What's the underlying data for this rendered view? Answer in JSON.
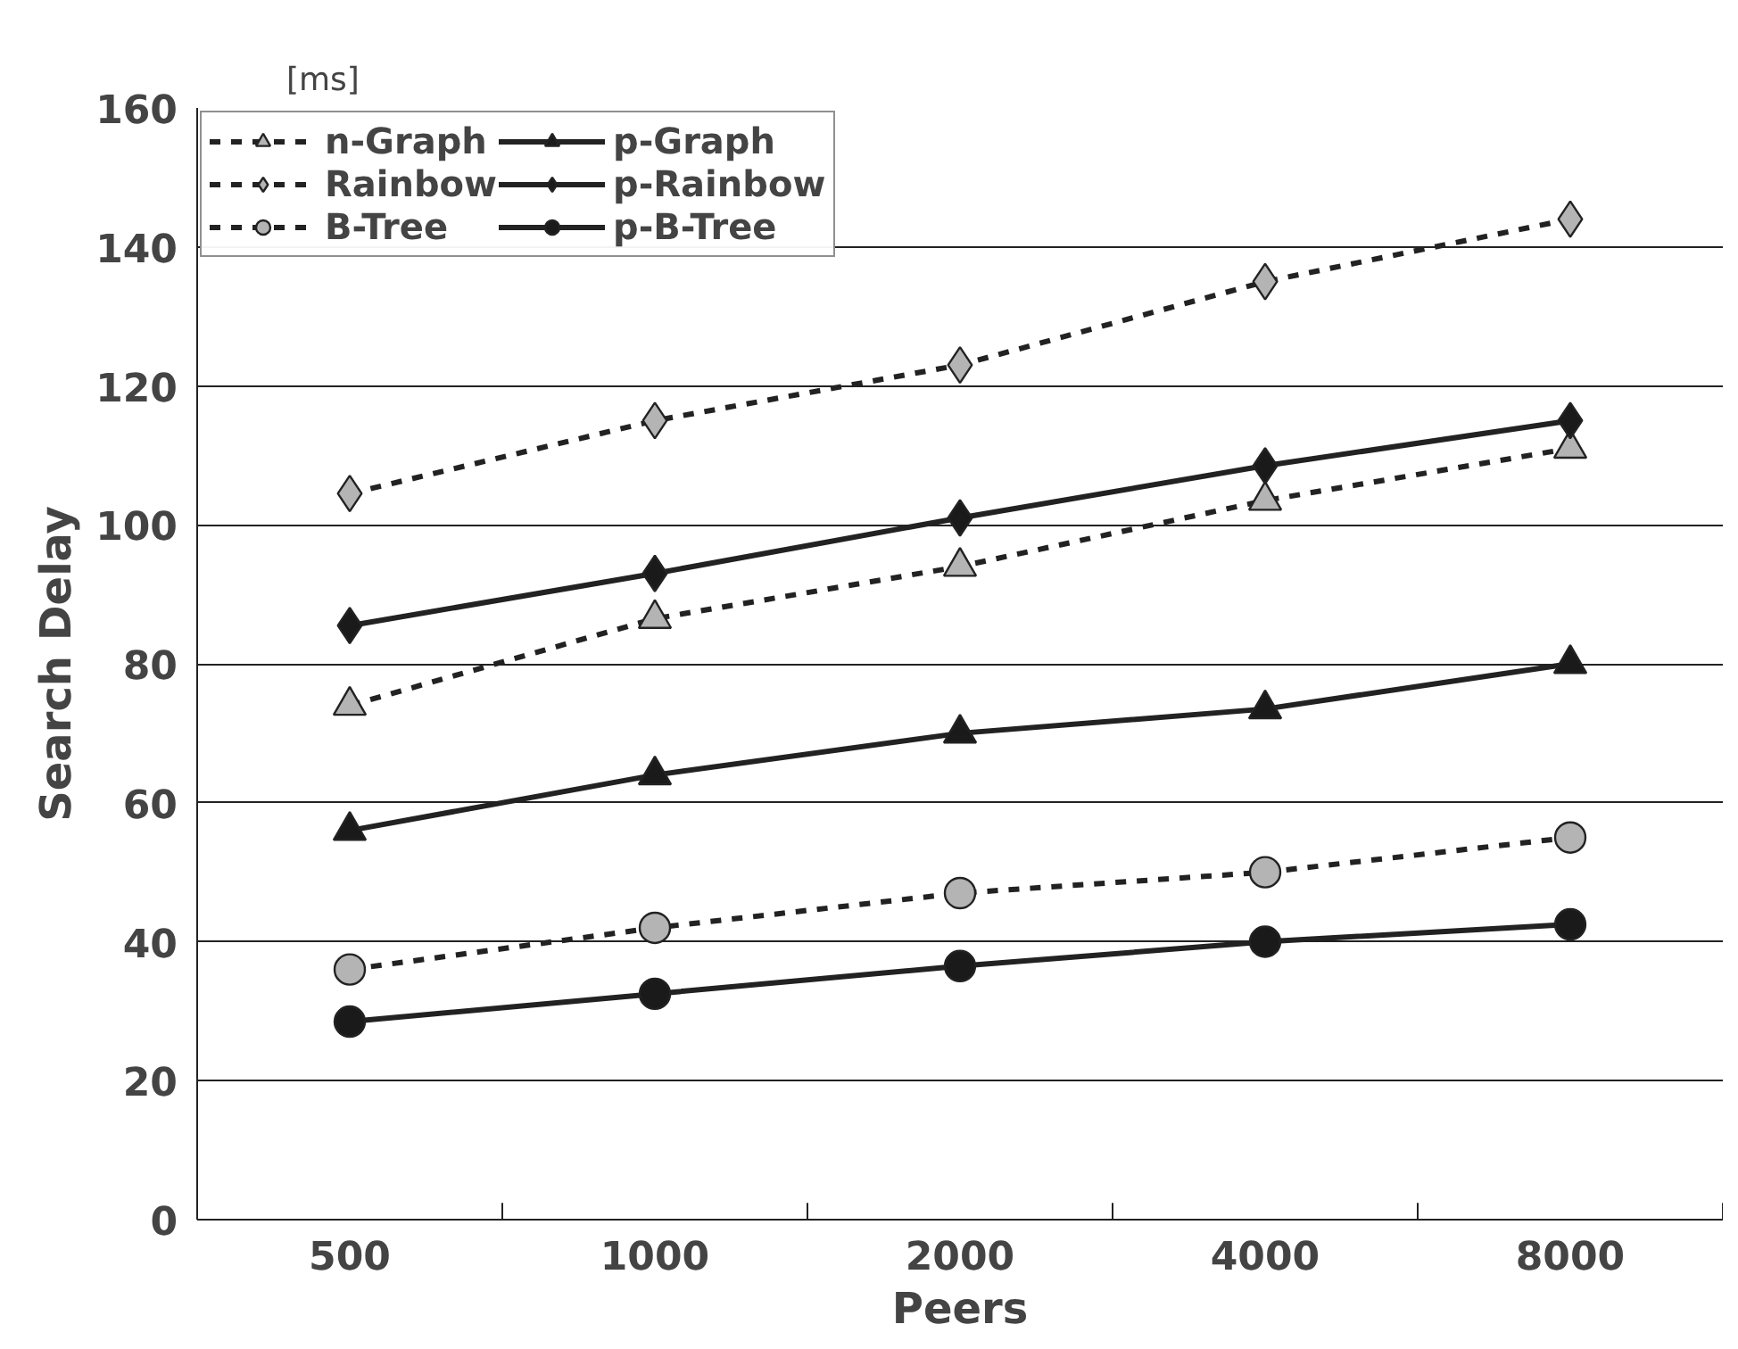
{
  "chart_data": {
    "type": "line",
    "xlabel": "Peers",
    "ylabel": "Search Delay",
    "annotations": [
      "[ms]"
    ],
    "categories": [
      "500",
      "1000",
      "2000",
      "4000",
      "8000"
    ],
    "ylim": [
      0,
      160
    ],
    "yticks": [
      0,
      20,
      40,
      60,
      80,
      100,
      120,
      140,
      160
    ],
    "grid": "y",
    "legend": "top left",
    "series": [
      {
        "name": "n-Graph",
        "color": "#b4b4b4",
        "marker": "triangle",
        "line_style": "dashed",
        "values": [
          74,
          86.5,
          94,
          103.5,
          111
        ]
      },
      {
        "name": "Rainbow",
        "color": "#b4b4b4",
        "marker": "diamond",
        "line_style": "dashed",
        "values": [
          104.5,
          115,
          123,
          135,
          144
        ]
      },
      {
        "name": "B-Tree",
        "color": "#b4b4b4",
        "marker": "circle",
        "line_style": "dashed",
        "values": [
          36,
          42,
          47,
          50,
          55
        ]
      },
      {
        "name": "p-Graph",
        "color": "#1a1a1a",
        "marker": "triangle",
        "line_style": "solid",
        "values": [
          56,
          64,
          70,
          73.5,
          80
        ]
      },
      {
        "name": "p-Rainbow",
        "color": "#1a1a1a",
        "marker": "diamond",
        "line_style": "solid",
        "values": [
          85.5,
          93,
          101,
          108.5,
          115
        ]
      },
      {
        "name": "p-B-Tree",
        "color": "#1a1a1a",
        "marker": "circle",
        "line_style": "solid",
        "values": [
          28.5,
          32.5,
          36.5,
          40,
          42.5
        ]
      }
    ]
  }
}
